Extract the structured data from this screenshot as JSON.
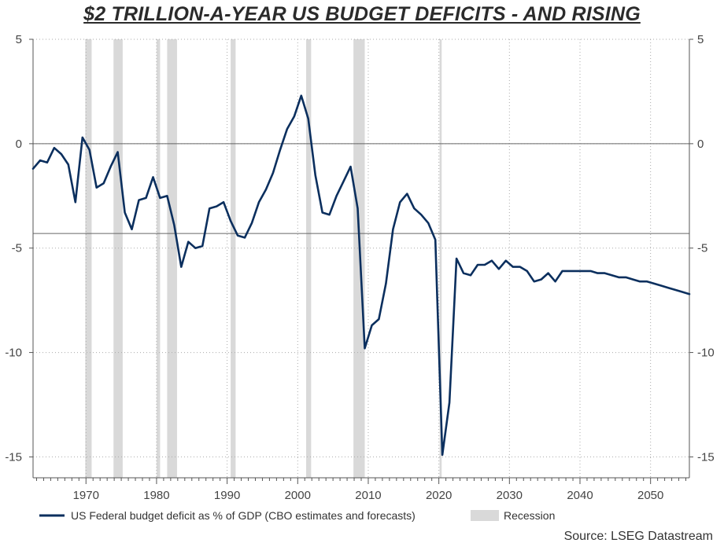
{
  "title": "$2 TRILLION-A-YEAR US BUDGET DEFICITS - AND RISING",
  "source": "Source: LSEG Datastream",
  "chart_data": {
    "type": "line",
    "title": "$2 TRILLION-A-YEAR US BUDGET DEFICITS - AND RISING",
    "xlim": [
      1962.5,
      2055.5
    ],
    "ylim": [
      -16,
      5
    ],
    "x_ticks": [
      1970,
      1980,
      1990,
      2000,
      2010,
      2020,
      2030,
      2040,
      2050
    ],
    "x_tick_labels": [
      "1970",
      "1980",
      "1990",
      "2000",
      "2010",
      "2020",
      "2030",
      "2040",
      "2050"
    ],
    "y_ticks": [
      5,
      0,
      -5,
      -10,
      -15
    ],
    "y_tick_labels": [
      "5",
      "0",
      "-5",
      "-10",
      "-15"
    ],
    "grid": true,
    "reference_lines": [
      0,
      -4.3
    ],
    "legend_position": "bottom",
    "colors": {
      "series": "#0b2f5e",
      "recession": "#d9d9d9",
      "grid": "#aaaaaa",
      "axis": "#555555"
    },
    "recessions": [
      [
        1969.9,
        1970.8
      ],
      [
        1973.9,
        1975.2
      ],
      [
        1980.0,
        1980.5
      ],
      [
        1981.5,
        1982.9
      ],
      [
        1990.5,
        1991.2
      ],
      [
        2001.2,
        2001.9
      ],
      [
        2007.9,
        2009.5
      ],
      [
        2020.1,
        2020.4
      ]
    ],
    "series": [
      {
        "name": "US Federal budget deficit as % of GDP (CBO estimates and forecasts)",
        "x": [
          1962.5,
          1963.5,
          1964.5,
          1965.5,
          1966.5,
          1967.5,
          1968.5,
          1969.5,
          1970.5,
          1971.5,
          1972.5,
          1973.5,
          1974.5,
          1975.5,
          1976.5,
          1977.5,
          1978.5,
          1979.5,
          1980.5,
          1981.5,
          1982.5,
          1983.5,
          1984.5,
          1985.5,
          1986.5,
          1987.5,
          1988.5,
          1989.5,
          1990.5,
          1991.5,
          1992.5,
          1993.5,
          1994.5,
          1995.5,
          1996.5,
          1997.5,
          1998.5,
          1999.5,
          2000.5,
          2001.5,
          2002.5,
          2003.5,
          2004.5,
          2005.5,
          2006.5,
          2007.5,
          2008.5,
          2009.5,
          2010.5,
          2011.5,
          2012.5,
          2013.5,
          2014.5,
          2015.5,
          2016.5,
          2017.5,
          2018.5,
          2019.5,
          2020.5,
          2021.5,
          2022.5,
          2023.5,
          2024.5,
          2025.5,
          2026.5,
          2027.5,
          2028.5,
          2029.5,
          2030.5,
          2031.5,
          2032.5,
          2033.5,
          2034.5,
          2035.5,
          2036.5,
          2037.5,
          2038.5,
          2039.5,
          2040.5,
          2041.5,
          2042.5,
          2043.5,
          2044.5,
          2045.5,
          2046.5,
          2047.5,
          2048.5,
          2049.5,
          2050.5,
          2051.5,
          2052.5,
          2053.5,
          2054.5,
          2055.5
        ],
        "values": [
          -1.2,
          -0.8,
          -0.9,
          -0.2,
          -0.5,
          -1.0,
          -2.8,
          0.3,
          -0.3,
          -2.1,
          -1.9,
          -1.1,
          -0.4,
          -3.3,
          -4.1,
          -2.7,
          -2.6,
          -1.6,
          -2.6,
          -2.5,
          -3.9,
          -5.9,
          -4.7,
          -5.0,
          -4.9,
          -3.1,
          -3.0,
          -2.8,
          -3.7,
          -4.4,
          -4.5,
          -3.8,
          -2.8,
          -2.2,
          -1.4,
          -0.3,
          0.7,
          1.3,
          2.3,
          1.2,
          -1.5,
          -3.3,
          -3.4,
          -2.5,
          -1.8,
          -1.1,
          -3.1,
          -9.8,
          -8.7,
          -8.4,
          -6.7,
          -4.1,
          -2.8,
          -2.4,
          -3.1,
          -3.4,
          -3.8,
          -4.6,
          -14.9,
          -12.4,
          -5.5,
          -6.2,
          -6.3,
          -5.8,
          -5.8,
          -5.6,
          -6.0,
          -5.6,
          -5.9,
          -5.9,
          -6.1,
          -6.6,
          -6.5,
          -6.2,
          -6.6,
          -6.1,
          -6.1,
          -6.1,
          -6.1,
          -6.1,
          -6.2,
          -6.2,
          -6.3,
          -6.4,
          -6.4,
          -6.5,
          -6.6,
          -6.6,
          -6.7,
          -6.8,
          -6.9,
          -7.0,
          -7.1,
          -7.2
        ]
      },
      {
        "name": "Recession",
        "type": "band"
      }
    ]
  }
}
